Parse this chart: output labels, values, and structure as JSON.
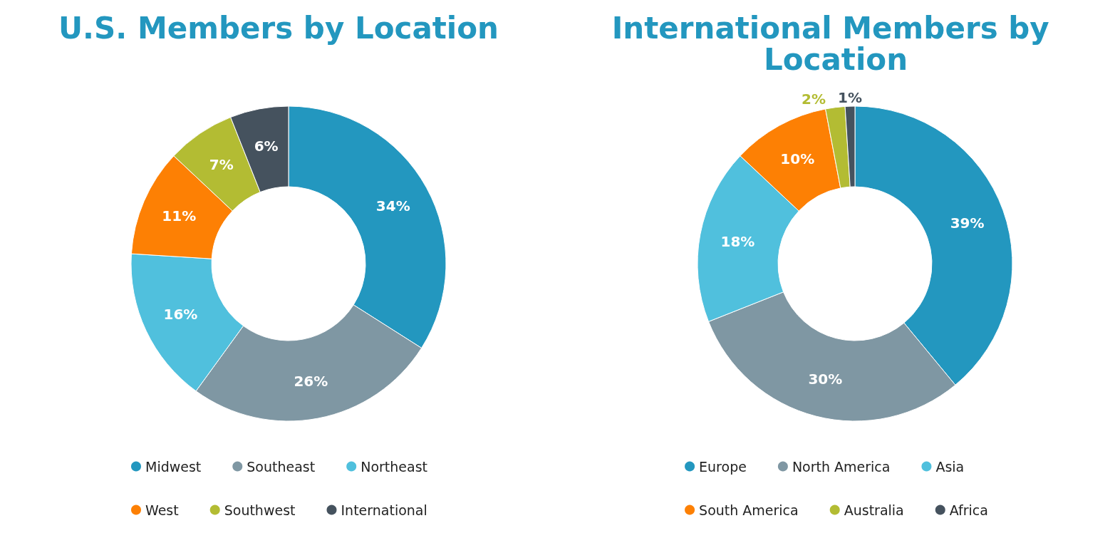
{
  "chart_data": [
    {
      "type": "donut",
      "title": "U.S. Members by Location",
      "categories": [
        "Midwest",
        "Southeast",
        "Northeast",
        "West",
        "Southwest",
        "International"
      ],
      "values": [
        34,
        26,
        16,
        11,
        7,
        6
      ],
      "value_labels": [
        "34%",
        "26%",
        "16%",
        "11%",
        "7%",
        "6%"
      ],
      "colors": [
        "#2397bf",
        "#7f97a3",
        "#50c0dd",
        "#fd8004",
        "#b3bc33",
        "#45525e"
      ],
      "data_labels": true,
      "legend": "bottom"
    },
    {
      "type": "donut",
      "title": "International Members by Location",
      "categories": [
        "Europe",
        "North America",
        "Asia",
        "South America",
        "Australia",
        "Africa"
      ],
      "values": [
        39,
        30,
        18,
        10,
        2,
        1
      ],
      "value_labels": [
        "39%",
        "30%",
        "18%",
        "10%",
        "2%",
        "1%"
      ],
      "colors": [
        "#2397bf",
        "#7f97a3",
        "#50c0dd",
        "#fd8004",
        "#b3bc33",
        "#45525e"
      ],
      "data_labels": true,
      "legend": "bottom"
    }
  ]
}
